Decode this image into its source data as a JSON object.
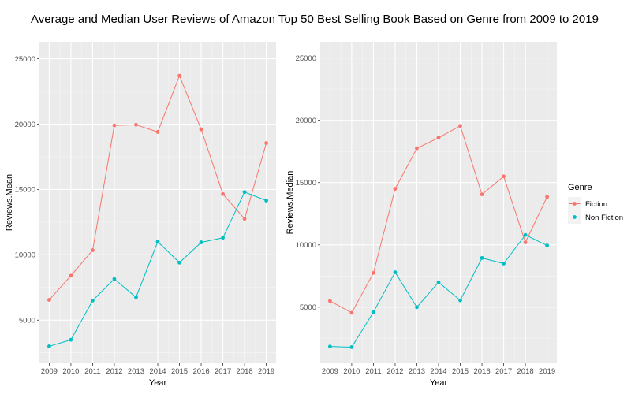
{
  "title": "Average and Median User Reviews of Amazon Top 50 Best Selling Book Based on Genre from 2009 to 2019",
  "colors": {
    "fiction": "#F8766D",
    "non_fiction": "#00BFC4",
    "panel_bg": "#EBEBEB",
    "grid_major": "#FFFFFF",
    "grid_minor": "#F5F5F5"
  },
  "legend": {
    "title": "Genre",
    "entries": [
      "Fiction",
      "Non Fiction"
    ]
  },
  "chart_data": [
    {
      "type": "line",
      "title": "",
      "xlabel": "Year",
      "ylabel": "Reviews.Mean",
      "x": [
        2009,
        2010,
        2011,
        2012,
        2013,
        2014,
        2015,
        2016,
        2017,
        2018,
        2019
      ],
      "x_tick_labels": [
        "2009",
        "2010",
        "2011",
        "2012",
        "2013",
        "2014",
        "2015",
        "2016",
        "2017",
        "2018",
        "2019"
      ],
      "y_ticks": [
        5000,
        10000,
        15000,
        20000,
        25000
      ],
      "y_tick_labels": [
        "5000",
        "10000",
        "15000",
        "20000",
        "25000"
      ],
      "ylim": [
        1700,
        26300
      ],
      "grid": true,
      "legend_position": "none",
      "series": [
        {
          "name": "Fiction",
          "values": [
            6550,
            8400,
            10350,
            19900,
            19950,
            19400,
            23700,
            19600,
            14650,
            12750,
            18550
          ]
        },
        {
          "name": "Non Fiction",
          "values": [
            3000,
            3500,
            6500,
            8150,
            6750,
            11000,
            9400,
            10950,
            11300,
            14800,
            14150
          ]
        }
      ]
    },
    {
      "type": "line",
      "title": "",
      "xlabel": "Year",
      "ylabel": "Reviews.Median",
      "x": [
        2009,
        2010,
        2011,
        2012,
        2013,
        2014,
        2015,
        2016,
        2017,
        2018,
        2019
      ],
      "x_tick_labels": [
        "2009",
        "2010",
        "2011",
        "2012",
        "2013",
        "2014",
        "2015",
        "2016",
        "2017",
        "2018",
        "2019"
      ],
      "y_ticks": [
        5000,
        10000,
        15000,
        20000,
        25000
      ],
      "y_tick_labels": [
        "5000",
        "10000",
        "15000",
        "20000",
        "25000"
      ],
      "ylim": [
        500,
        26300
      ],
      "grid": true,
      "legend_position": "right",
      "series": [
        {
          "name": "Fiction",
          "values": [
            5500,
            4550,
            7750,
            14500,
            17750,
            18600,
            19550,
            14050,
            15500,
            10200,
            13850
          ]
        },
        {
          "name": "Non Fiction",
          "values": [
            1850,
            1800,
            4600,
            7800,
            5000,
            7000,
            5550,
            8950,
            8500,
            10800,
            9950
          ]
        }
      ]
    }
  ]
}
